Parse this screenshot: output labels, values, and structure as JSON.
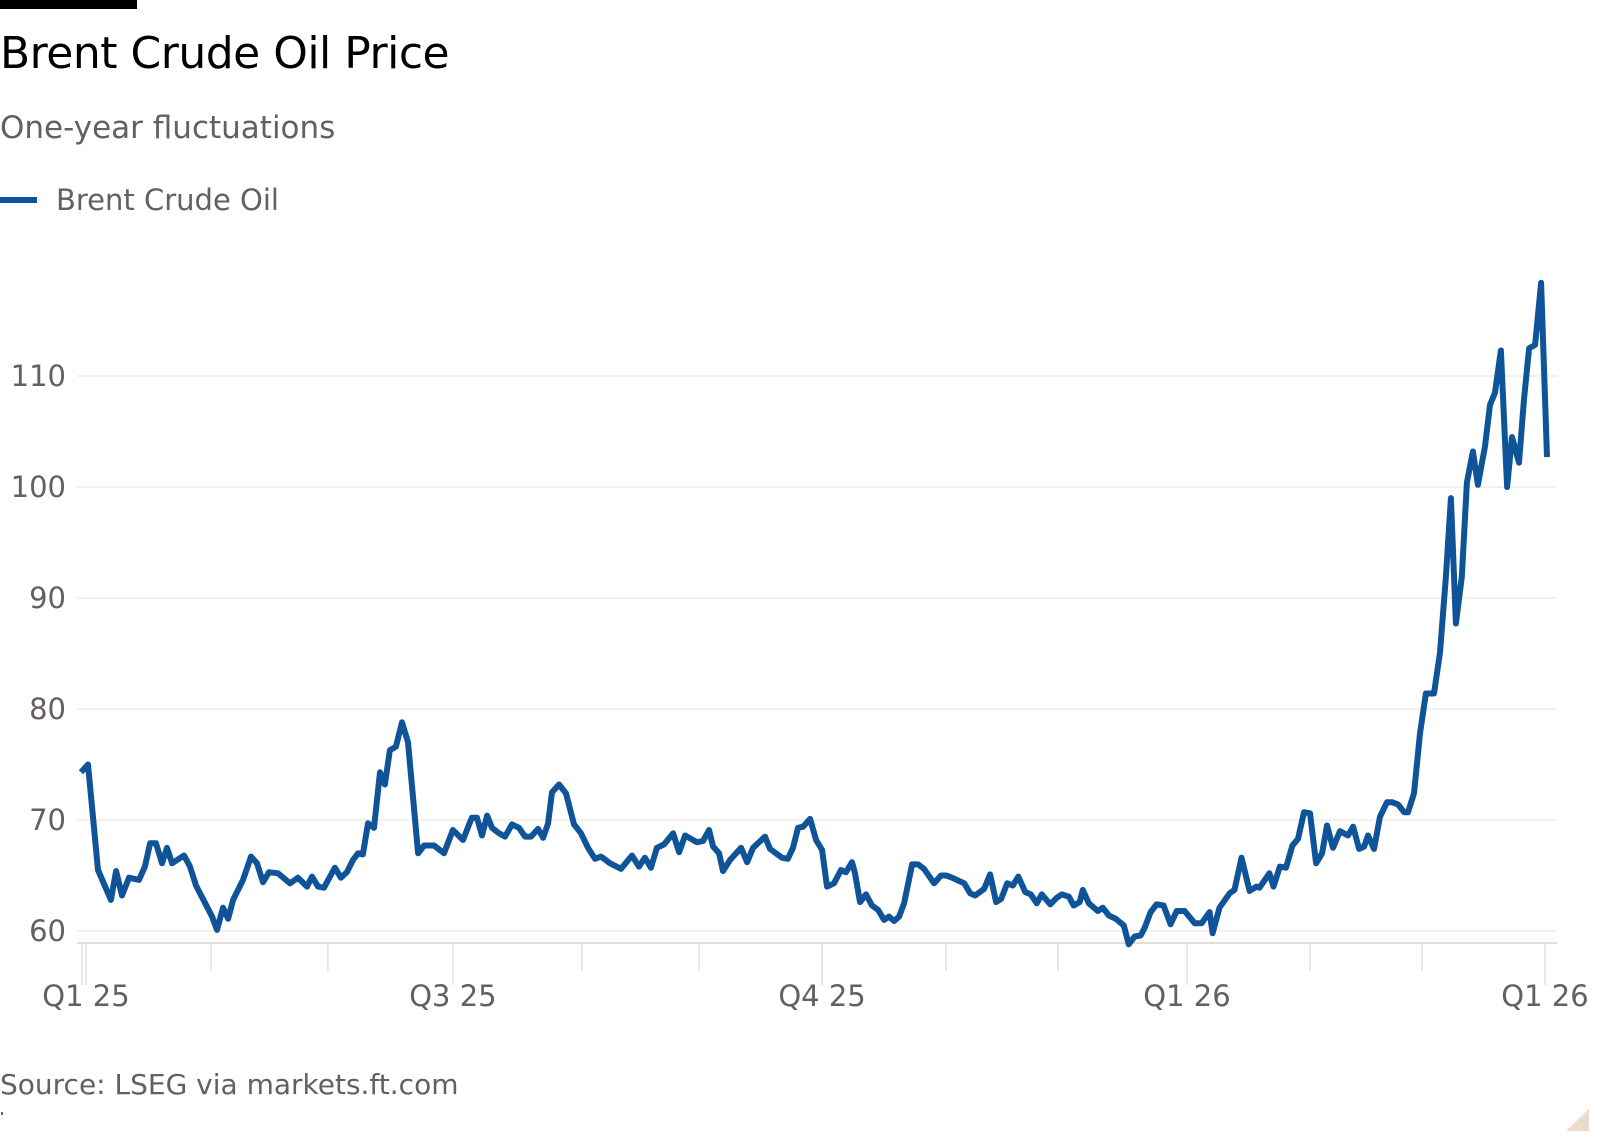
{
  "header": {
    "title": "Brent Crude Oil Price",
    "subtitle": "One-year fluctuations"
  },
  "legend": {
    "items": [
      {
        "label": "Brent Crude Oil",
        "color": "#0f5499"
      }
    ]
  },
  "footer": {
    "source": "Source: LSEG via markets.ft.com"
  },
  "colors": {
    "line": "#0f5499",
    "grid": "#f2ece6",
    "axis": "#e6dfd8",
    "text_muted": "#66605c",
    "title": "#000000"
  },
  "chart_data": {
    "type": "line",
    "title": "Brent Crude Oil Price",
    "subtitle": "One-year fluctuations",
    "xlabel": "",
    "ylabel": "",
    "ylim": [
      58,
      119
    ],
    "yticks": [
      60,
      70,
      80,
      90,
      100,
      110
    ],
    "xticks": [
      {
        "label": "Q1 25",
        "pos": 0.0
      },
      {
        "label": "Q3 25",
        "pos": 0.2515
      },
      {
        "label": "Q4 25",
        "pos": 0.5045
      },
      {
        "label": "Q1 26",
        "pos": 0.7546
      },
      {
        "label": "Q1 26",
        "pos": 1.0
      }
    ],
    "minor_ticks": [
      0.0857,
      0.1658,
      0.3399,
      0.4202,
      0.5894,
      0.6662,
      0.8389,
      0.9157
    ],
    "grid": true,
    "legend_position": "top-left",
    "source": "Source: LSEG via markets.ft.com",
    "series": [
      {
        "name": "Brent Crude Oil",
        "color": "#0f5499",
        "x": [
          -0.0034,
          0.0014,
          0.0082,
          0.0171,
          0.0206,
          0.0247,
          0.0295,
          0.0363,
          0.0404,
          0.0439,
          0.048,
          0.0521,
          0.0555,
          0.059,
          0.0672,
          0.0713,
          0.0754,
          0.0864,
          0.0898,
          0.0939,
          0.0974,
          0.1008,
          0.1076,
          0.1131,
          0.1172,
          0.1213,
          0.1254,
          0.1316,
          0.1398,
          0.1453,
          0.1515,
          0.1549,
          0.159,
          0.1631,
          0.1706,
          0.1747,
          0.1788,
          0.183,
          0.1864,
          0.1898,
          0.1933,
          0.1974,
          0.2015,
          0.2049,
          0.2083,
          0.2124,
          0.2166,
          0.2207,
          0.2276,
          0.2317,
          0.2385,
          0.2454,
          0.2515,
          0.2584,
          0.2632,
          0.2645,
          0.268,
          0.2714,
          0.2749,
          0.2783,
          0.2831,
          0.2872,
          0.292,
          0.2968,
          0.3009,
          0.305,
          0.3099,
          0.3133,
          0.3167,
          0.3194,
          0.3242,
          0.329,
          0.3345,
          0.3393,
          0.3441,
          0.3489,
          0.353,
          0.3592,
          0.3667,
          0.3742,
          0.379,
          0.3831,
          0.3872,
          0.3913,
          0.3962,
          0.4024,
          0.4065,
          0.4106,
          0.4188,
          0.4229,
          0.427,
          0.4298,
          0.4339,
          0.4366,
          0.4414,
          0.449,
          0.4531,
          0.4572,
          0.4654,
          0.4688,
          0.477,
          0.4811,
          0.4846,
          0.488,
          0.4915,
          0.4963,
          0.5004,
          0.5045,
          0.5079,
          0.5127,
          0.5175,
          0.5209,
          0.525,
          0.5271,
          0.5305,
          0.5346,
          0.5387,
          0.5429,
          0.547,
          0.5504,
          0.5539,
          0.5573,
          0.5607,
          0.5662,
          0.5703,
          0.5744,
          0.5813,
          0.586,
          0.5895,
          0.5936,
          0.6019,
          0.606,
          0.6094,
          0.6156,
          0.6197,
          0.6238,
          0.6273,
          0.6314,
          0.6352,
          0.639,
          0.6438,
          0.6476,
          0.6517,
          0.6551,
          0.6609,
          0.6654,
          0.6688,
          0.6736,
          0.677,
          0.6811,
          0.6832,
          0.6873,
          0.6935,
          0.6969,
          0.701,
          0.7058,
          0.7113,
          0.7147,
          0.7188,
          0.7229,
          0.7256,
          0.7297,
          0.7338,
          0.7386,
          0.7434,
          0.7476,
          0.753,
          0.7599,
          0.7646,
          0.7701,
          0.7722,
          0.7769,
          0.7838,
          0.7872,
          0.792,
          0.7975,
          0.8023,
          0.8043,
          0.8111,
          0.8139,
          0.8183,
          0.8225,
          0.8269,
          0.8307,
          0.8348,
          0.8389,
          0.8431,
          0.8472,
          0.8506,
          0.8547,
          0.8595,
          0.865,
          0.8685,
          0.8726,
          0.876,
          0.8787,
          0.8828,
          0.8869,
          0.8917,
          0.8952,
          0.8993,
          0.9034,
          0.9061,
          0.9102,
          0.9143,
          0.9184,
          0.9239,
          0.928,
          0.9321,
          0.9355,
          0.9389,
          0.943,
          0.9465,
          0.9506,
          0.954,
          0.9588,
          0.9623,
          0.9657,
          0.9698,
          0.974,
          0.9774,
          0.9822,
          0.9856,
          0.9891,
          0.9932,
          0.9973,
          1.0014
        ],
        "values": [
          74.3,
          75.0,
          65.5,
          62.8,
          65.4,
          63.2,
          64.8,
          64.6,
          65.8,
          67.9,
          67.9,
          66.1,
          67.5,
          66.1,
          66.8,
          65.8,
          64.1,
          61.3,
          60.1,
          62.1,
          61.1,
          62.8,
          64.6,
          66.7,
          66.1,
          64.4,
          65.3,
          65.2,
          64.3,
          64.8,
          64.0,
          64.9,
          64.0,
          63.9,
          65.7,
          64.8,
          65.3,
          66.4,
          67.0,
          66.9,
          69.7,
          69.3,
          74.3,
          73.2,
          76.3,
          76.6,
          78.8,
          77.0,
          67.0,
          67.7,
          67.7,
          67.0,
          69.1,
          68.2,
          69.8,
          70.2,
          70.2,
          68.6,
          70.4,
          69.3,
          68.8,
          68.5,
          69.6,
          69.3,
          68.5,
          68.5,
          69.2,
          68.4,
          69.7,
          72.5,
          73.2,
          72.4,
          69.6,
          68.8,
          67.5,
          66.5,
          66.7,
          66.1,
          65.6,
          66.8,
          65.8,
          66.6,
          65.7,
          67.5,
          67.8,
          68.8,
          67.1,
          68.6,
          68.0,
          68.1,
          69.1,
          67.6,
          67.0,
          65.4,
          66.4,
          67.5,
          66.2,
          67.5,
          68.5,
          67.4,
          66.6,
          66.5,
          67.5,
          69.3,
          69.4,
          70.1,
          68.2,
          67.3,
          64.0,
          64.3,
          65.5,
          65.3,
          66.2,
          65.2,
          62.6,
          63.3,
          62.3,
          61.9,
          61.0,
          61.3,
          60.9,
          61.3,
          62.5,
          66.0,
          66.0,
          65.6,
          64.3,
          65.0,
          65.0,
          64.8,
          64.3,
          63.4,
          63.2,
          63.8,
          65.1,
          62.6,
          62.9,
          64.3,
          64.1,
          64.9,
          63.5,
          63.3,
          62.5,
          63.3,
          62.4,
          63.0,
          63.3,
          63.1,
          62.3,
          62.6,
          63.7,
          62.5,
          61.8,
          62.1,
          61.4,
          61.1,
          60.5,
          58.8,
          59.5,
          59.6,
          60.3,
          61.7,
          62.4,
          62.3,
          60.6,
          61.8,
          61.8,
          60.7,
          60.7,
          61.7,
          59.8,
          62.1,
          63.4,
          63.7,
          66.6,
          63.6,
          64.0,
          63.9,
          65.2,
          64.0,
          65.8,
          65.7,
          67.7,
          68.3,
          70.7,
          70.6,
          66.1,
          67.0,
          69.5,
          67.5,
          69.0,
          68.6,
          69.4,
          67.4,
          67.6,
          68.6,
          67.4,
          70.3,
          71.6,
          71.6,
          71.4,
          70.7,
          70.7,
          72.4,
          77.8,
          81.4,
          81.4,
          85.1,
          91.9,
          99.0,
          87.7,
          91.9,
          100.4,
          103.2,
          100.2,
          103.6,
          107.4,
          108.5,
          112.3,
          100.0,
          104.5,
          102.2,
          107.9,
          112.5,
          112.8,
          118.4,
          102.7
        ]
      }
    ]
  }
}
